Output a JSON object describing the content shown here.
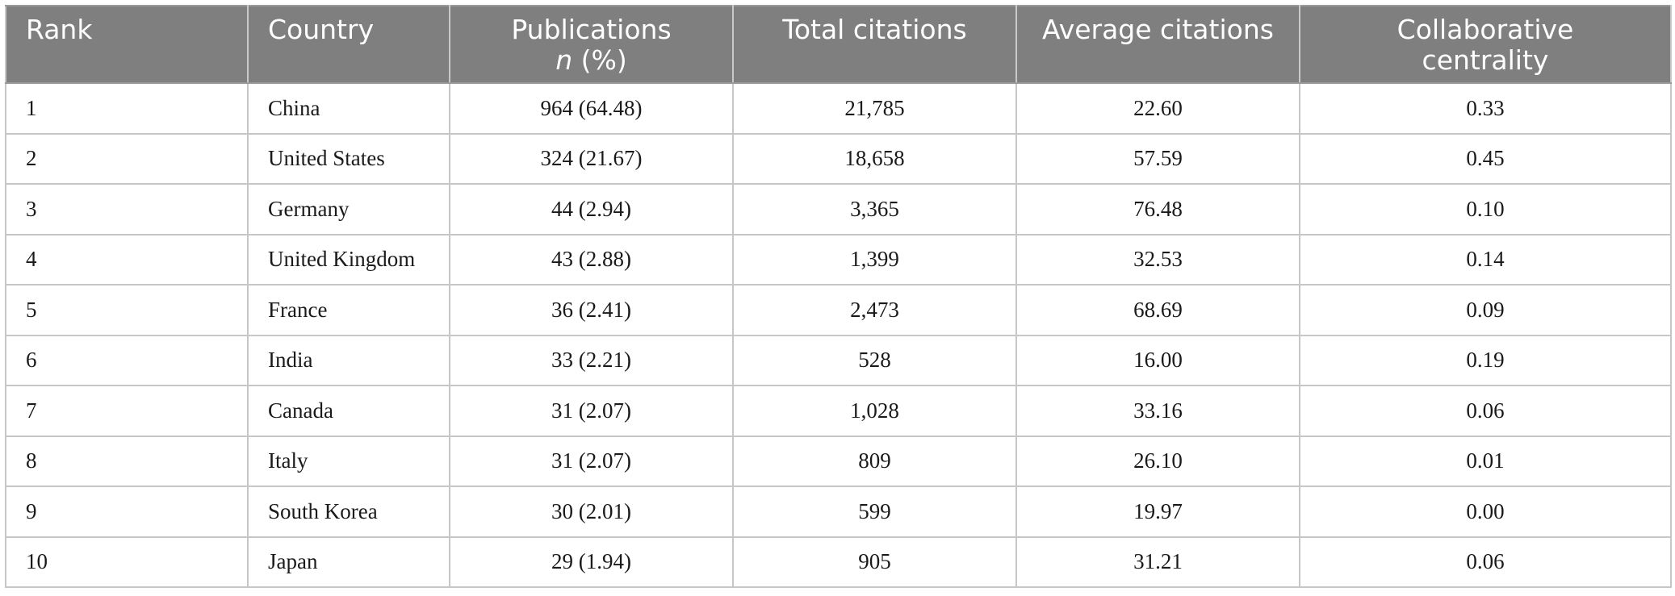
{
  "table": {
    "headers": {
      "rank": "Rank",
      "country": "Country",
      "publications_line1": "Publications",
      "publications_n": "n",
      "publications_pct": " (%)",
      "total_citations": "Total citations",
      "average_citations": "Average citations",
      "collab_line1": "Collaborative",
      "collab_line2": "centrality"
    },
    "rows": [
      {
        "rank": "1",
        "country": "China",
        "publications": "964 (64.48)",
        "total_citations": "21,785",
        "average_citations": "22.60",
        "collab": "0.33"
      },
      {
        "rank": "2",
        "country": "United States",
        "publications": "324 (21.67)",
        "total_citations": "18,658",
        "average_citations": "57.59",
        "collab": "0.45"
      },
      {
        "rank": "3",
        "country": "Germany",
        "publications": "44 (2.94)",
        "total_citations": "3,365",
        "average_citations": "76.48",
        "collab": "0.10"
      },
      {
        "rank": "4",
        "country": "United Kingdom",
        "publications": "43 (2.88)",
        "total_citations": "1,399",
        "average_citations": "32.53",
        "collab": "0.14"
      },
      {
        "rank": "5",
        "country": "France",
        "publications": "36 (2.41)",
        "total_citations": "2,473",
        "average_citations": "68.69",
        "collab": "0.09"
      },
      {
        "rank": "6",
        "country": "India",
        "publications": "33 (2.21)",
        "total_citations": "528",
        "average_citations": "16.00",
        "collab": "0.19"
      },
      {
        "rank": "7",
        "country": "Canada",
        "publications": "31 (2.07)",
        "total_citations": "1,028",
        "average_citations": "33.16",
        "collab": "0.06"
      },
      {
        "rank": "8",
        "country": "Italy",
        "publications": "31 (2.07)",
        "total_citations": "809",
        "average_citations": "26.10",
        "collab": "0.01"
      },
      {
        "rank": "9",
        "country": "South Korea",
        "publications": "30 (2.01)",
        "total_citations": "599",
        "average_citations": "19.97",
        "collab": "0.00"
      },
      {
        "rank": "10",
        "country": "Japan",
        "publications": "29 (1.94)",
        "total_citations": "905",
        "average_citations": "31.21",
        "collab": "0.06"
      }
    ]
  }
}
